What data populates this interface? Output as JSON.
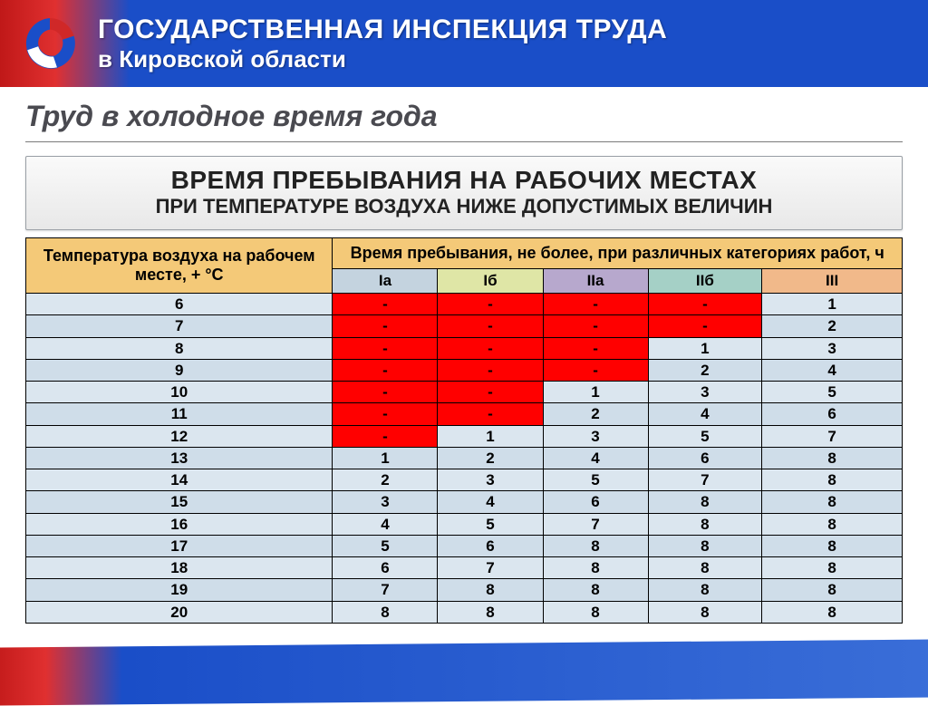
{
  "header": {
    "line1": "ГОСУДАРСТВЕННАЯ ИНСПЕКЦИЯ ТРУДА",
    "line2": "в Кировской области",
    "stripe_gradient": [
      "#c01818",
      "#1a4ec8"
    ],
    "logo_colors": {
      "red": "#d02828",
      "blue": "#1a4ec8",
      "white": "#ffffff"
    }
  },
  "page_title": "Труд в холодное время года",
  "banner": {
    "line1": "ВРЕМЯ ПРЕБЫВАНИЯ НА РАБОЧИХ МЕСТАХ",
    "line2": "ПРИ ТЕМПЕРАТУРЕ ВОЗДУХА НИЖЕ ДОПУСТИМЫХ ВЕЛИЧИН",
    "bg_gradient": [
      "#fafafa",
      "#e8e8e8"
    ],
    "border_color": "#9aa0a6"
  },
  "table": {
    "type": "table",
    "col_left_header": "Температура воздуха на рабочем месте, + °С",
    "group_header": "Время пребывания, не более, при различных категориях работ, ч",
    "header_bg": "#f4c978",
    "row_bg_odd": "#dbe6ef",
    "row_bg_even": "#cfdde9",
    "red_cell_bg": "#ff0000",
    "border_color": "#000000",
    "col_widths_pct": [
      35,
      12,
      12,
      12,
      13,
      16
    ],
    "categories": [
      {
        "label": "Iа",
        "bg": "#c4d3df"
      },
      {
        "label": "Iб",
        "bg": "#dfe6a6"
      },
      {
        "label": "IIа",
        "bg": "#b7a8cd"
      },
      {
        "label": "IIб",
        "bg": "#a5d0c6"
      },
      {
        "label": "III",
        "bg": "#f1b98a"
      }
    ],
    "temps": [
      6,
      7,
      8,
      9,
      10,
      11,
      12,
      13,
      14,
      15,
      16,
      17,
      18,
      19,
      20
    ],
    "values": [
      [
        "-",
        "-",
        "-",
        "-",
        "1"
      ],
      [
        "-",
        "-",
        "-",
        "-",
        "2"
      ],
      [
        "-",
        "-",
        "-",
        "1",
        "3"
      ],
      [
        "-",
        "-",
        "-",
        "2",
        "4"
      ],
      [
        "-",
        "-",
        "1",
        "3",
        "5"
      ],
      [
        "-",
        "-",
        "2",
        "4",
        "6"
      ],
      [
        "-",
        "1",
        "3",
        "5",
        "7"
      ],
      [
        "1",
        "2",
        "4",
        "6",
        "8"
      ],
      [
        "2",
        "3",
        "5",
        "7",
        "8"
      ],
      [
        "3",
        "4",
        "6",
        "8",
        "8"
      ],
      [
        "4",
        "5",
        "7",
        "8",
        "8"
      ],
      [
        "5",
        "6",
        "8",
        "8",
        "8"
      ],
      [
        "6",
        "7",
        "8",
        "8",
        "8"
      ],
      [
        "7",
        "8",
        "8",
        "8",
        "8"
      ],
      [
        "8",
        "8",
        "8",
        "8",
        "8"
      ]
    ]
  }
}
